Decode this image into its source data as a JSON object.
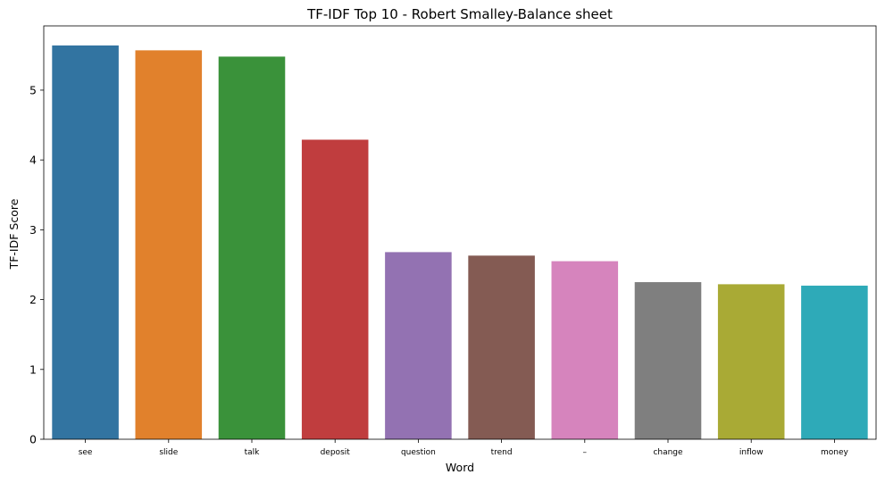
{
  "chart_data": {
    "type": "bar",
    "title": "TF-IDF Top 10 - Robert Smalley-Balance sheet",
    "xlabel": "Word",
    "ylabel": "TF-IDF Score",
    "categories": [
      "see",
      "slide",
      "talk",
      "deposit",
      "question",
      "trend",
      "–",
      "change",
      "inflow",
      "money"
    ],
    "values": [
      5.64,
      5.57,
      5.48,
      4.29,
      2.68,
      2.63,
      2.55,
      2.25,
      2.22,
      2.2
    ],
    "colors": [
      "#3274a1",
      "#e1812c",
      "#3a923a",
      "#c03d3e",
      "#9372b2",
      "#845b53",
      "#d684bd",
      "#7f7f7f",
      "#a9aa35",
      "#2eaab8"
    ],
    "yticks": [
      0,
      1,
      2,
      3,
      4,
      5
    ],
    "ylim": [
      0,
      5.92
    ],
    "grid": false,
    "legend": false
  }
}
